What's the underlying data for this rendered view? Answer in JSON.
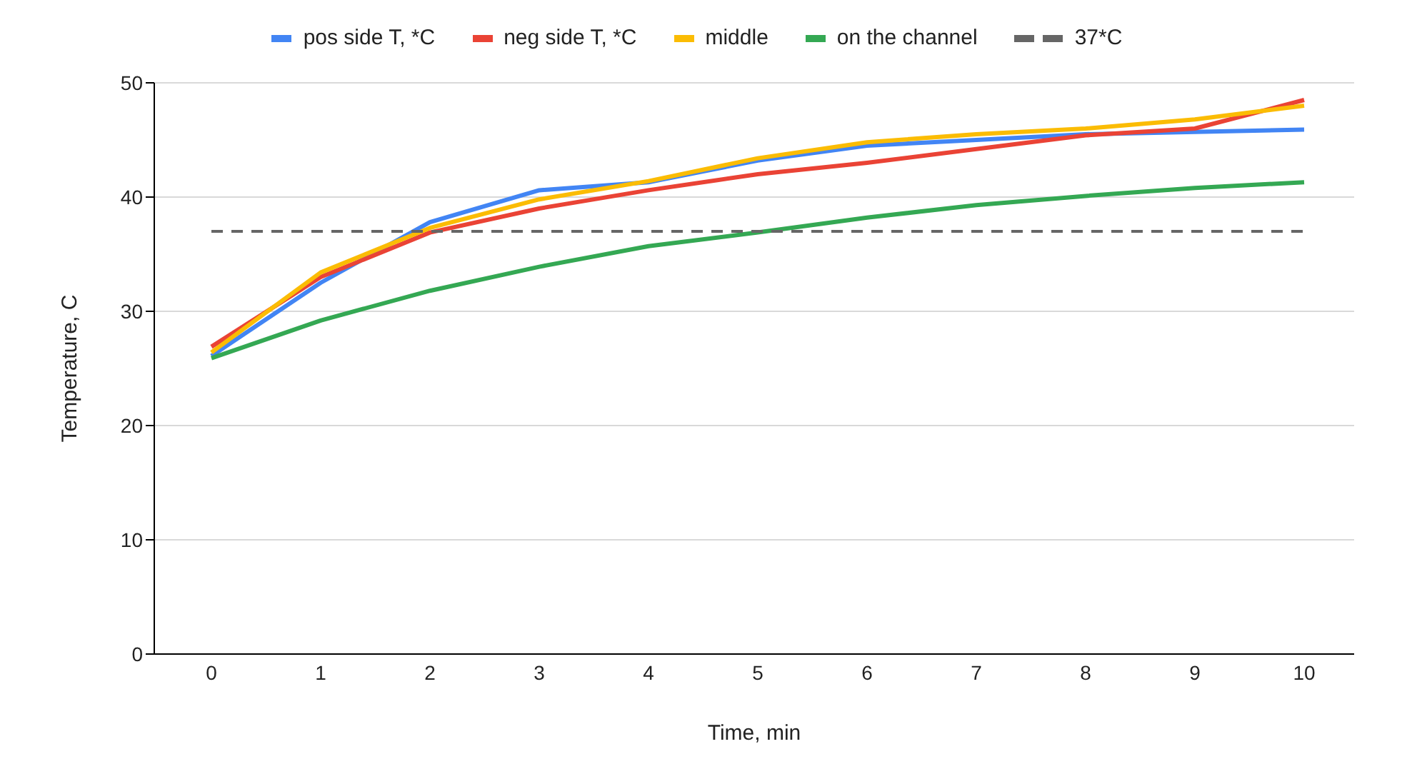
{
  "chart_data": {
    "type": "line",
    "xlabel": "Time, min",
    "ylabel": "Temperature, C",
    "categories": [
      "0",
      "1",
      "2",
      "3",
      "4",
      "5",
      "6",
      "7",
      "8",
      "9",
      "10"
    ],
    "ylim": [
      0,
      50
    ],
    "yticks": [
      0,
      10,
      20,
      30,
      40,
      50
    ],
    "grid": "y",
    "legend": "top",
    "marker": "none",
    "series": [
      {
        "name": "pos side T, *C",
        "color": "#4285f4",
        "values": [
          26.1,
          32.5,
          37.8,
          40.6,
          41.3,
          43.2,
          44.5,
          45,
          45.5,
          45.7,
          45.9
        ]
      },
      {
        "name": "neg side T, *C",
        "color": "#ea4335",
        "values": [
          26.9,
          33,
          36.9,
          39,
          40.6,
          42,
          43,
          44.2,
          45.4,
          46,
          48.5
        ]
      },
      {
        "name": "middle",
        "color": "#fbbc04",
        "values": [
          26.4,
          33.4,
          37.3,
          39.8,
          41.4,
          43.4,
          44.8,
          45.5,
          46,
          46.8,
          48
        ]
      },
      {
        "name": "on the channel",
        "color": "#34a853",
        "values": [
          25.9,
          29.2,
          31.8,
          33.9,
          35.7,
          36.9,
          38.2,
          39.3,
          40.1,
          40.8,
          41.3
        ]
      },
      {
        "name": "37*C",
        "color": "#666666",
        "line_style": "dashed",
        "values": [
          37,
          37,
          37,
          37,
          37,
          37,
          37,
          37,
          37,
          37,
          37
        ]
      }
    ]
  }
}
